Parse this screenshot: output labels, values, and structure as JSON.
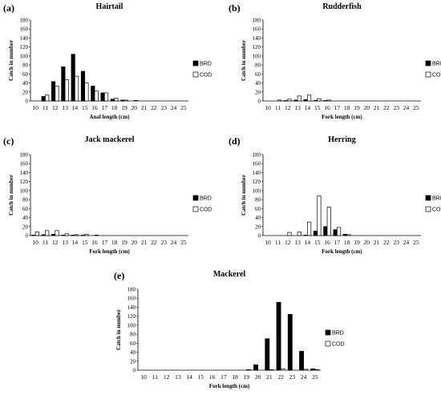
{
  "legend": {
    "brd": "BRD",
    "cod": "COD",
    "brd_color": "#000000",
    "cod_color": "#ffffff",
    "border_color": "#000000"
  },
  "chart_data": [
    {
      "panel": "(a)",
      "title": "Hairtail",
      "type": "bar",
      "xlabel": "Anal length (cm)",
      "ylabel": "Catch in number",
      "ylim": [
        0,
        180
      ],
      "yticks": [
        0,
        20,
        40,
        60,
        80,
        100,
        120,
        140,
        160,
        180
      ],
      "legend_position": "right",
      "categories": [
        "10",
        "11",
        "12",
        "13",
        "14",
        "15",
        "16",
        "17",
        "18",
        "19",
        "20",
        "21",
        "22",
        "23",
        "24",
        "25"
      ],
      "series": [
        {
          "name": "BRD",
          "values": [
            0,
            10,
            43,
            76,
            104,
            66,
            33,
            18,
            4,
            2,
            0,
            0,
            0,
            0,
            0,
            0
          ]
        },
        {
          "name": "COD",
          "values": [
            0,
            13,
            33,
            47,
            55,
            40,
            22,
            18,
            6,
            2,
            1,
            0,
            0,
            0,
            0,
            0
          ]
        }
      ]
    },
    {
      "panel": "(b)",
      "title": "Rudderfish",
      "type": "bar",
      "xlabel": "Fork length (cm)",
      "ylabel": "Catch in number",
      "ylim": [
        0,
        180
      ],
      "yticks": [
        0,
        20,
        40,
        60,
        80,
        100,
        120,
        140,
        160,
        180
      ],
      "legend_position": "right",
      "categories": [
        "10",
        "11",
        "12",
        "13",
        "14",
        "15",
        "16",
        "17",
        "18",
        "19",
        "20",
        "21",
        "22",
        "23",
        "24",
        "25"
      ],
      "series": [
        {
          "name": "BRD",
          "values": [
            0,
            0,
            1,
            2,
            3,
            1,
            1,
            0,
            0,
            0,
            0,
            0,
            0,
            0,
            0,
            0
          ]
        },
        {
          "name": "COD",
          "values": [
            0,
            2,
            4,
            11,
            13,
            5,
            2,
            0,
            0,
            0,
            0,
            0,
            0,
            0,
            0,
            0
          ]
        }
      ]
    },
    {
      "panel": "(c)",
      "title": "Jack mackerel",
      "type": "bar",
      "xlabel": "Fork length (cm)",
      "ylabel": "Catch in number",
      "ylim": [
        0,
        180
      ],
      "yticks": [
        0,
        20,
        40,
        60,
        80,
        100,
        120,
        140,
        160,
        180
      ],
      "legend_position": "right",
      "categories": [
        "10",
        "11",
        "12",
        "13",
        "14",
        "15",
        "16",
        "17",
        "18",
        "19",
        "20",
        "21",
        "22",
        "23",
        "24",
        "25"
      ],
      "series": [
        {
          "name": "BRD",
          "values": [
            1,
            2,
            3,
            1,
            1,
            1,
            0,
            0,
            0,
            0,
            0,
            0,
            0,
            0,
            0,
            0
          ]
        },
        {
          "name": "COD",
          "values": [
            8,
            11,
            11,
            4,
            2,
            3,
            1,
            0,
            0,
            0,
            0,
            0,
            0,
            0,
            0,
            0
          ]
        }
      ]
    },
    {
      "panel": "(d)",
      "title": "Herring",
      "type": "bar",
      "xlabel": "Fork length (cm)",
      "ylabel": "Catch in number",
      "ylim": [
        0,
        180
      ],
      "yticks": [
        0,
        20,
        40,
        60,
        80,
        100,
        120,
        140,
        160,
        180
      ],
      "legend_position": "right",
      "categories": [
        "10",
        "11",
        "12",
        "13",
        "14",
        "15",
        "16",
        "17",
        "18",
        "19",
        "20",
        "21",
        "22",
        "23",
        "24",
        "25"
      ],
      "series": [
        {
          "name": "BRD",
          "values": [
            0,
            0,
            0,
            0,
            1,
            10,
            20,
            13,
            3,
            0,
            0,
            0,
            0,
            0,
            0,
            0
          ]
        },
        {
          "name": "COD",
          "values": [
            0,
            0,
            7,
            8,
            30,
            88,
            63,
            18,
            2,
            0,
            0,
            0,
            0,
            0,
            0,
            0
          ]
        }
      ]
    },
    {
      "panel": "(e)",
      "title": "Mackerel",
      "type": "bar",
      "xlabel": "Fork length (cm)",
      "ylabel": "Catch in number",
      "ylim": [
        0,
        180
      ],
      "yticks": [
        0,
        20,
        40,
        60,
        80,
        100,
        120,
        140,
        160,
        180
      ],
      "legend_position": "right",
      "categories": [
        "10",
        "11",
        "12",
        "13",
        "14",
        "15",
        "16",
        "17",
        "18",
        "19",
        "20",
        "21",
        "22",
        "23",
        "24",
        "25"
      ],
      "series": [
        {
          "name": "BRD",
          "values": [
            0,
            0,
            0,
            0,
            0,
            0,
            0,
            0,
            0,
            0,
            12,
            70,
            151,
            124,
            42,
            3
          ]
        },
        {
          "name": "COD",
          "values": [
            0,
            0,
            0,
            0,
            0,
            0,
            0,
            0,
            0,
            1,
            0,
            1,
            3,
            0,
            2,
            1
          ]
        }
      ]
    }
  ]
}
